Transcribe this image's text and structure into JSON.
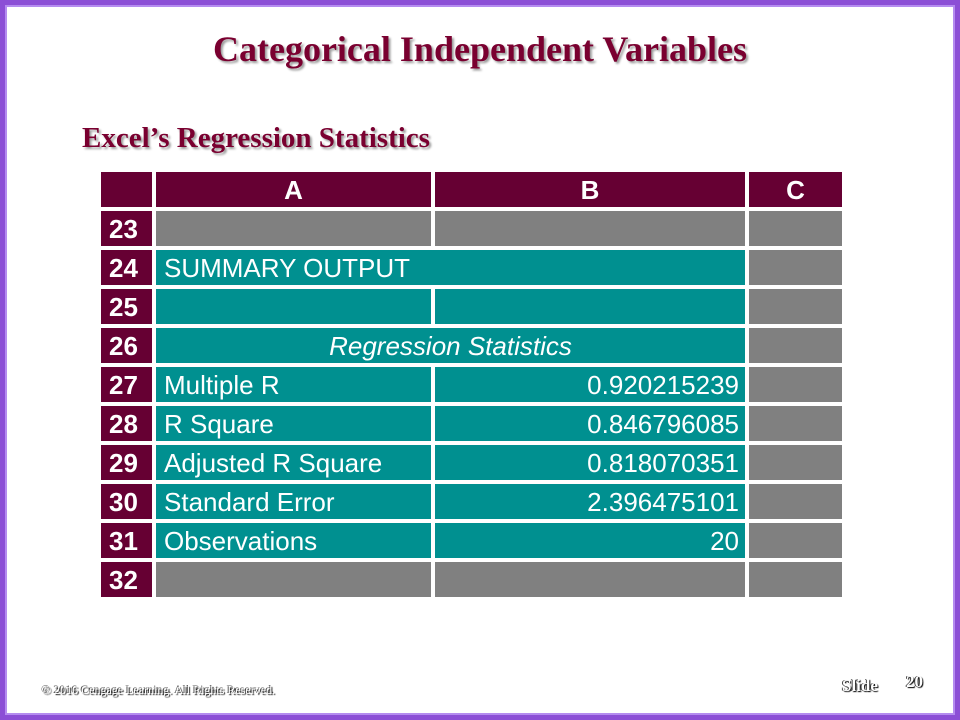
{
  "title": "Categorical Independent Variables",
  "subtitle": "Excel’s Regression Statistics",
  "sheet": {
    "columns": [
      "A",
      "B",
      "C"
    ],
    "rows": [
      {
        "num": "23",
        "a": "",
        "b": ""
      },
      {
        "num": "24",
        "a": "SUMMARY OUTPUT"
      },
      {
        "num": "25",
        "a": "",
        "b": ""
      },
      {
        "num": "26",
        "a": "Regression Statistics"
      },
      {
        "num": "27",
        "a": "Multiple R",
        "b": "0.920215239"
      },
      {
        "num": "28",
        "a": "R Square",
        "b": "0.846796085"
      },
      {
        "num": "29",
        "a": "Adjusted R Square",
        "b": "0.818070351"
      },
      {
        "num": "30",
        "a": "Standard Error",
        "b": "2.396475101"
      },
      {
        "num": "31",
        "a": "Observations",
        "b": "20"
      },
      {
        "num": "32",
        "a": "",
        "b": ""
      }
    ]
  },
  "footer": {
    "copyright": "© 2016 Cengage Learning.  All Rights Reserved.",
    "slide_label": "Slide",
    "slide_number": "20"
  },
  "colors": {
    "header": "#660033",
    "teal": "#009090",
    "gray": "#808080",
    "title": "#7a0030",
    "border": "#8c4fd6"
  }
}
